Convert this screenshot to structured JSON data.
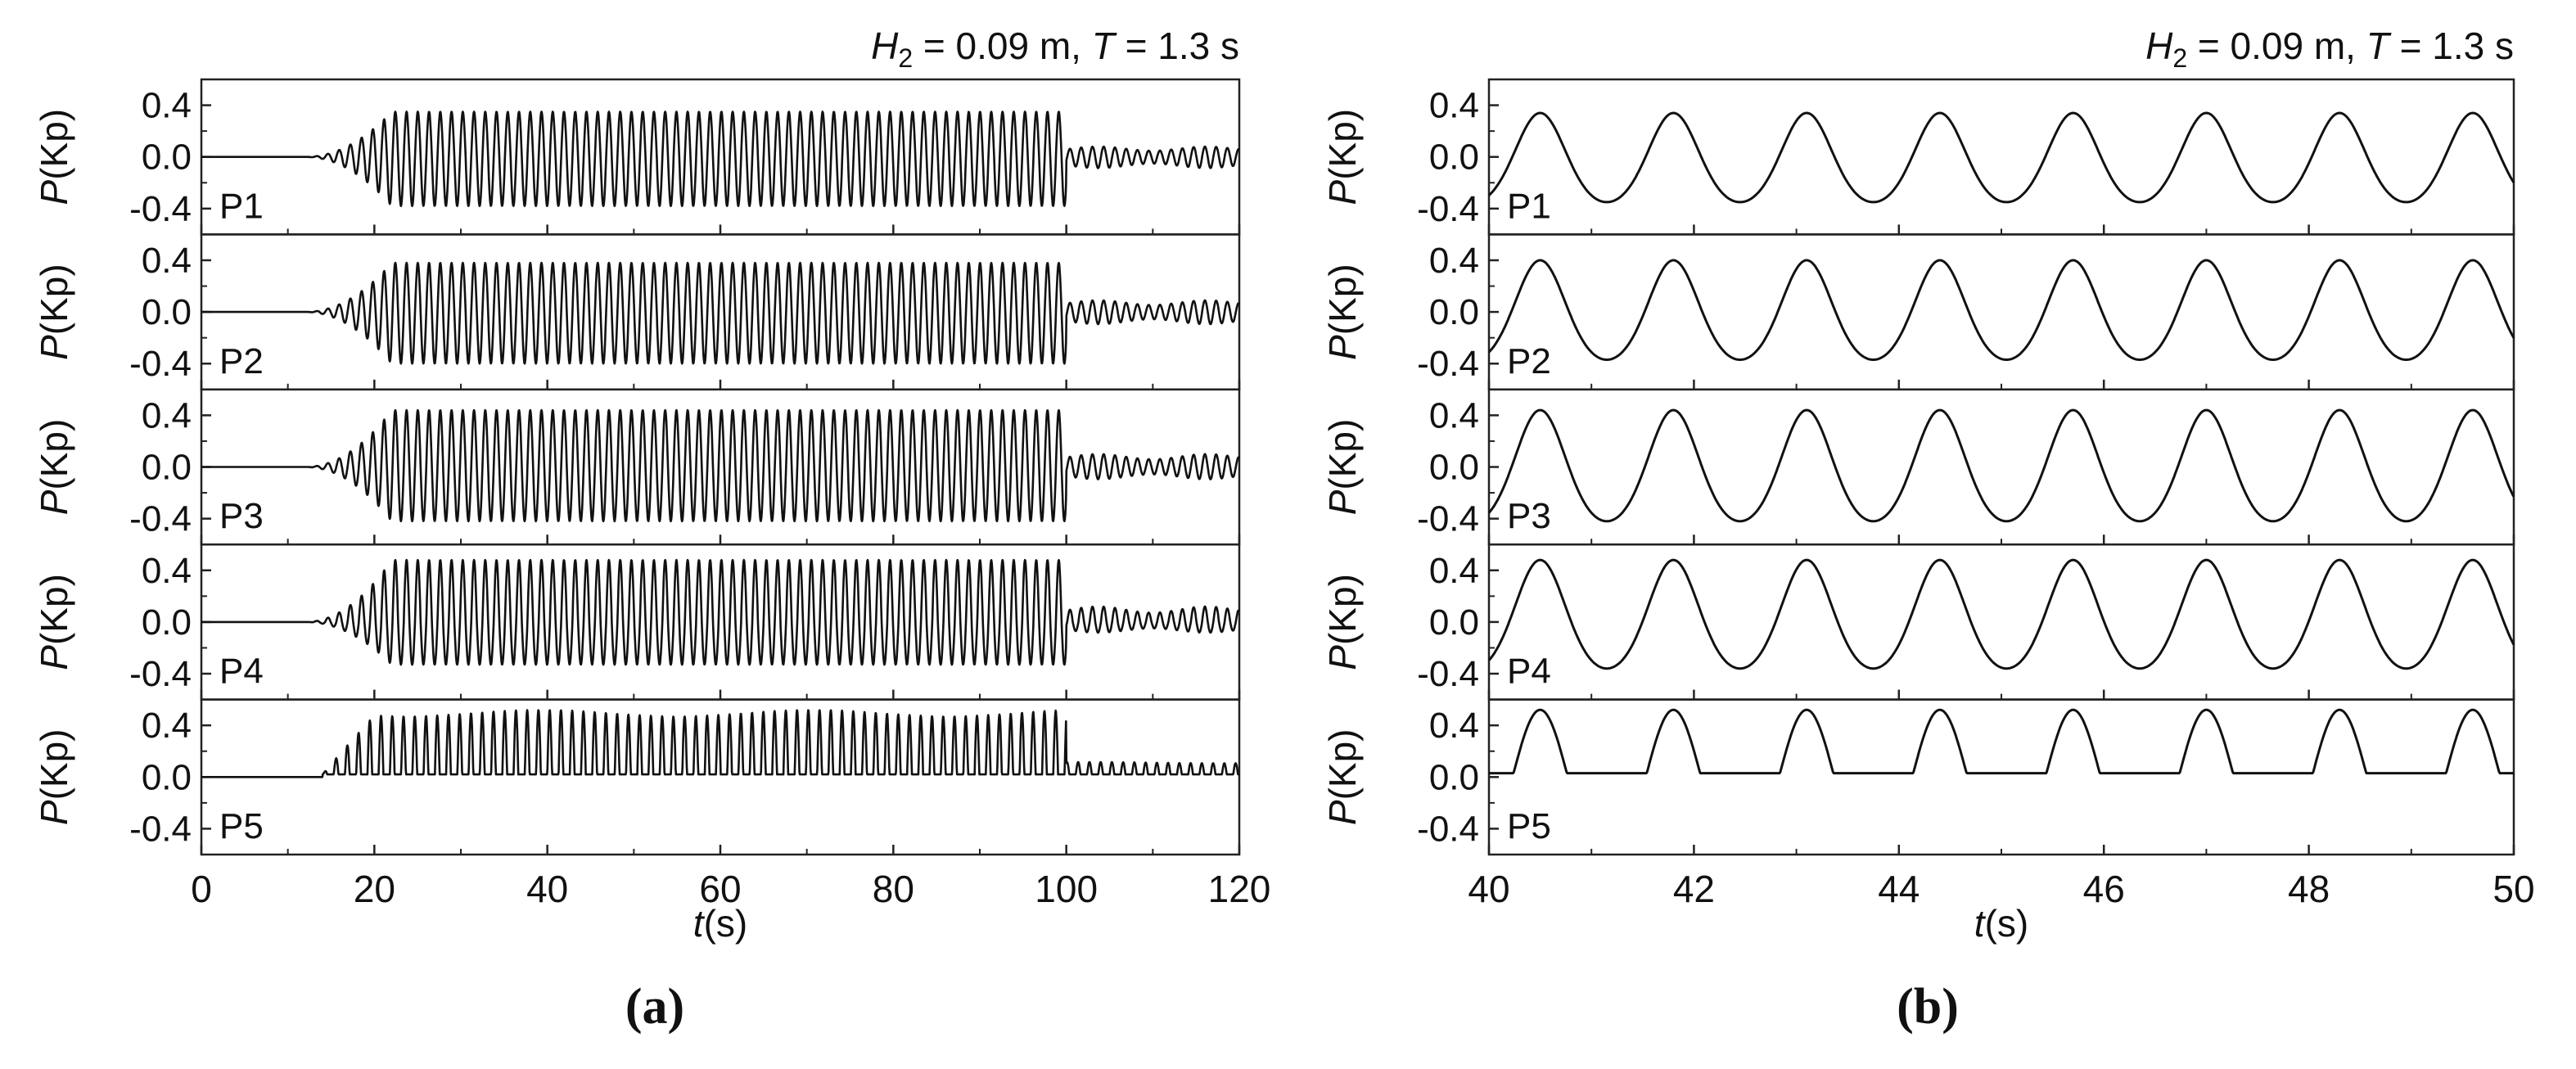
{
  "chart_data": [
    {
      "panel": "a",
      "type": "line",
      "caption": "(a)",
      "title": "H2 = 0.09 m, T = 1.3 s",
      "title_parts": [
        "H",
        "2",
        " = 0.09 m, ",
        "T",
        " = 1.3 s"
      ],
      "xlabel": "t(s)",
      "xlabel_parts": [
        "t",
        "(s)"
      ],
      "ylabel": "P(Kp)",
      "ylabel_parts": [
        "P",
        "(Kp)"
      ],
      "xlim": [
        0,
        120
      ],
      "ylim": [
        -0.6,
        0.6
      ],
      "xticks": [
        0,
        20,
        40,
        60,
        80,
        100,
        120
      ],
      "yticks": [
        -0.4,
        0.0,
        0.4
      ],
      "ytick_labels": [
        "-0.4",
        "0.0",
        "0.4"
      ],
      "grid": false,
      "period_s": 1.3,
      "series": [
        {
          "name": "P1",
          "start_s": 12,
          "end_s": 100,
          "peak": 0.35,
          "trough": -0.38,
          "residual": 0.08,
          "positive_only": false
        },
        {
          "name": "P2",
          "start_s": 12,
          "end_s": 100,
          "peak": 0.38,
          "trough": -0.4,
          "residual": 0.09,
          "positive_only": false
        },
        {
          "name": "P3",
          "start_s": 12,
          "end_s": 100,
          "peak": 0.44,
          "trough": -0.42,
          "residual": 0.1,
          "positive_only": false
        },
        {
          "name": "P4",
          "start_s": 12,
          "end_s": 100,
          "peak": 0.48,
          "trough": -0.33,
          "residual": 0.12,
          "positive_only": false
        },
        {
          "name": "P5",
          "start_s": 14,
          "end_s": 100,
          "peak": 0.52,
          "trough": 0.02,
          "residual": 0.1,
          "positive_only": true
        }
      ]
    },
    {
      "panel": "b",
      "type": "line",
      "caption": "(b)",
      "title": "H2 = 0.09 m, T = 1.3 s",
      "title_parts": [
        "H",
        "2",
        " = 0.09 m, ",
        "T",
        " = 1.3 s"
      ],
      "xlabel": "t(s)",
      "xlabel_parts": [
        "t",
        "(s)"
      ],
      "ylabel": "P(Kp)",
      "ylabel_parts": [
        "P",
        "(Kp)"
      ],
      "xlim": [
        40,
        50
      ],
      "ylim": [
        -0.6,
        0.6
      ],
      "xticks": [
        40,
        42,
        44,
        46,
        48,
        50
      ],
      "yticks": [
        -0.4,
        0.0,
        0.4
      ],
      "ytick_labels": [
        "-0.4",
        "0.0",
        "0.4"
      ],
      "grid": false,
      "period_s": 1.3,
      "first_peak_s": 40.5,
      "series": [
        {
          "name": "P1",
          "peak": 0.34,
          "trough": -0.35,
          "shape": "asymmetric"
        },
        {
          "name": "P2",
          "peak": 0.4,
          "trough": -0.37,
          "shape": "asymmetric"
        },
        {
          "name": "P3",
          "peak": 0.44,
          "trough": -0.42,
          "shape": "asymmetric"
        },
        {
          "name": "P4",
          "peak": 0.48,
          "trough": -0.36,
          "shape": "flat-trough"
        },
        {
          "name": "P5",
          "peak": 0.52,
          "trough": 0.03,
          "shape": "pulse"
        }
      ]
    }
  ]
}
